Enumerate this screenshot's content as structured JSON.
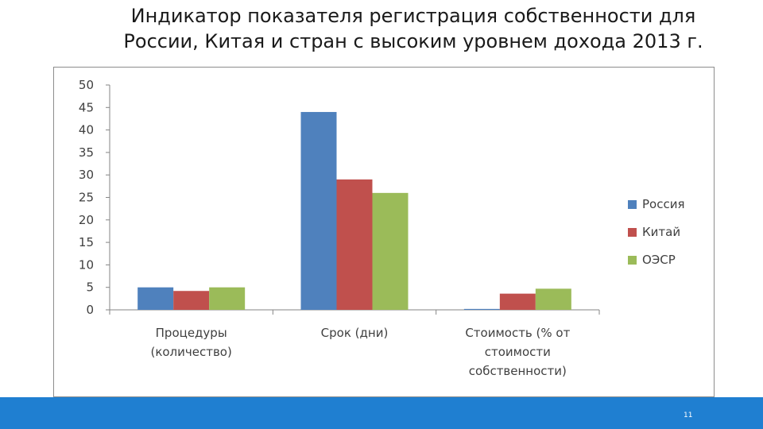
{
  "slide": {
    "title_line1": "Индикатор показателя регистрация  собственности для",
    "title_line2": "России, Китая и стран с высоким уровнем дохода 2013 г.",
    "page_number": "11"
  },
  "chart_data": {
    "type": "bar",
    "categories": [
      [
        "Процедуры",
        "(количество)"
      ],
      [
        "Срок (дни)"
      ],
      [
        "Стоимость (% от",
        "стоимости",
        "собственности)"
      ]
    ],
    "series": [
      {
        "name": "Россия",
        "color": "#4f81bd",
        "values": [
          5,
          44,
          0.2
        ]
      },
      {
        "name": "Китай",
        "color": "#c0504d",
        "values": [
          4.2,
          29,
          3.6
        ]
      },
      {
        "name": "ОЭСР",
        "color": "#9bbb59",
        "values": [
          5,
          26,
          4.7
        ]
      }
    ],
    "ylim": [
      0,
      50
    ],
    "yticks": [
      0,
      5,
      10,
      15,
      20,
      25,
      30,
      35,
      40,
      45,
      50
    ],
    "grid": false,
    "legend": "right"
  }
}
